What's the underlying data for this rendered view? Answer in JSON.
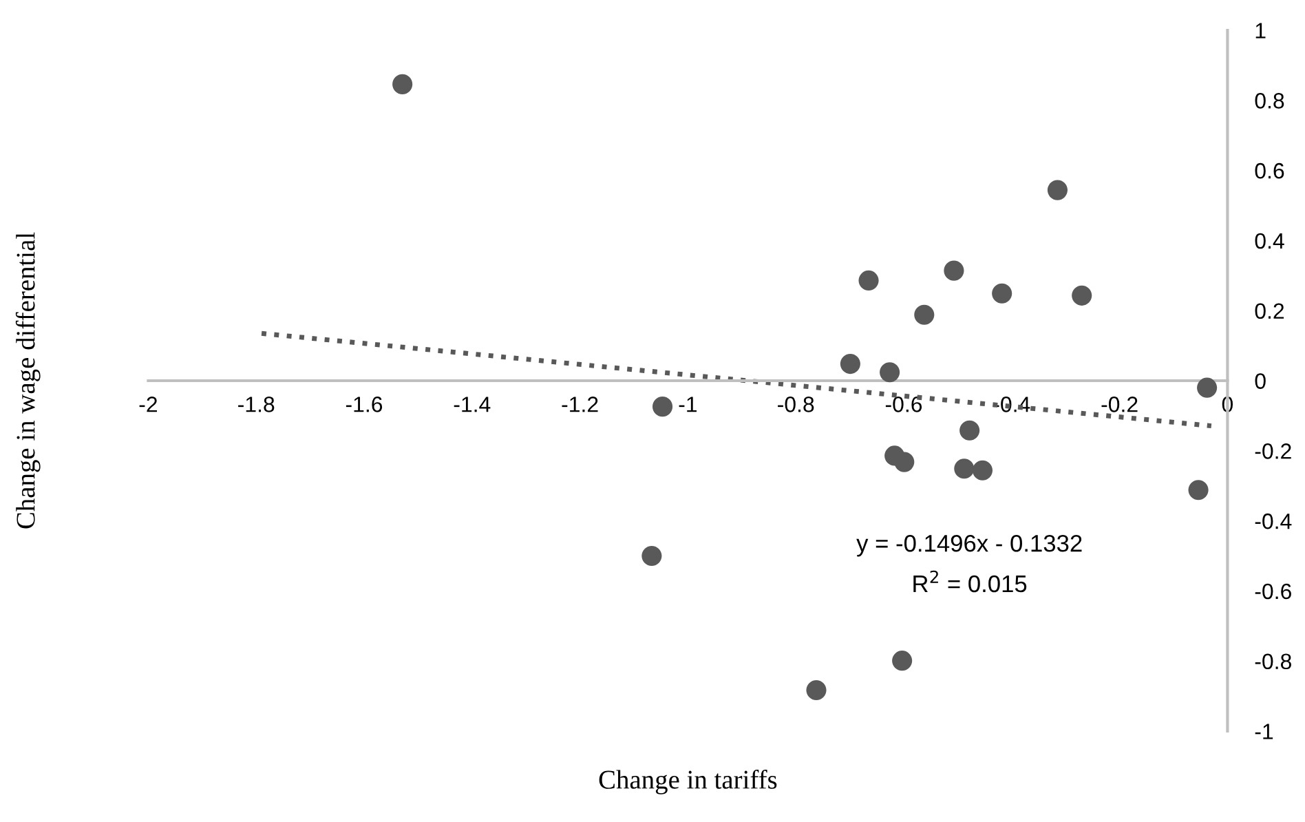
{
  "chart_data": {
    "type": "scatter",
    "xlabel": "Change in tariffs",
    "ylabel": "Change in wage differential",
    "xlim": [
      -2,
      0
    ],
    "ylim": [
      -1,
      1
    ],
    "xticks": [
      -2,
      -1.8,
      -1.6,
      -1.4,
      -1.2,
      -1,
      -0.8,
      -0.6,
      -0.4,
      -0.2,
      0
    ],
    "yticks": [
      -1,
      -0.8,
      -0.6,
      -0.4,
      -0.2,
      0,
      0.2,
      0.4,
      0.6,
      0.8,
      1
    ],
    "grid": false,
    "series": [
      {
        "color": "#595959",
        "marker": "circle",
        "x": [
          -1.529,
          -0.315,
          -0.665,
          -0.507,
          -0.418,
          -0.27,
          -0.562,
          -0.699,
          -0.626,
          -0.038,
          -0.478,
          -0.617,
          -0.599,
          -0.488,
          -0.454,
          -0.054,
          -1.047,
          -1.067,
          -0.603,
          -0.762
        ],
        "values": [
          0.846,
          0.544,
          0.286,
          0.314,
          0.249,
          0.243,
          0.188,
          0.048,
          0.024,
          -0.02,
          -0.142,
          -0.214,
          -0.232,
          -0.251,
          -0.256,
          -0.312,
          -0.074,
          -0.5,
          -0.799,
          -0.883
        ]
      },
      {
        "type": "line",
        "color": "#595959",
        "line_style": "dotted",
        "x": [
          -1.79,
          -0.03
        ],
        "values": [
          0.135,
          -0.129
        ]
      }
    ],
    "annotations": [
      "y = -0.1496x - 0.1332",
      "R$^{2}$ = 0.015"
    ]
  }
}
